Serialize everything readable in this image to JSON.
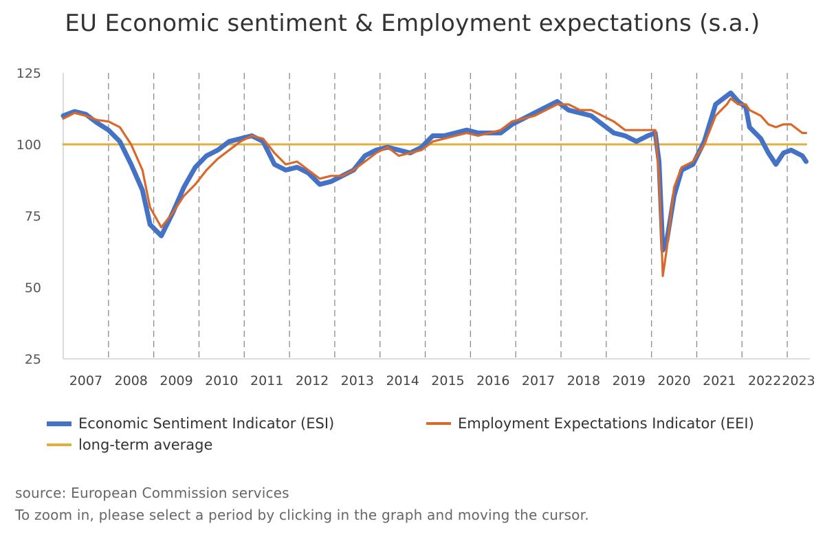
{
  "chart_data": {
    "type": "line",
    "title": "EU Economic sentiment & Employment expectations (s.a.)",
    "xlabel": "",
    "ylabel": "",
    "ylim": [
      25,
      125
    ],
    "y_ticks": [
      "25",
      "50",
      "75",
      "100",
      "125"
    ],
    "x_ticks": [
      "2007",
      "2008",
      "2009",
      "2010",
      "2011",
      "2012",
      "2013",
      "2014",
      "2015",
      "2016",
      "2017",
      "2018",
      "2019",
      "2020",
      "2021",
      "2022",
      "2023"
    ],
    "x_range": [
      "2007-01",
      "2023-06"
    ],
    "grid": "vertical dashed lines at year boundaries",
    "legend_position": "bottom",
    "series": [
      {
        "name": "Economic Sentiment Indicator (ESI)",
        "color": "#4472c4",
        "points": [
          [
            "2007-01",
            110
          ],
          [
            "2007-04",
            111.5
          ],
          [
            "2007-07",
            110.5
          ],
          [
            "2007-10",
            107.5
          ],
          [
            "2008-01",
            105
          ],
          [
            "2008-04",
            101
          ],
          [
            "2008-07",
            93
          ],
          [
            "2008-10",
            84
          ],
          [
            "2008-12",
            72
          ],
          [
            "2009-03",
            68
          ],
          [
            "2009-06",
            76
          ],
          [
            "2009-09",
            85
          ],
          [
            "2009-12",
            92
          ],
          [
            "2010-03",
            96
          ],
          [
            "2010-06",
            98
          ],
          [
            "2010-09",
            101
          ],
          [
            "2010-12",
            102
          ],
          [
            "2011-03",
            103
          ],
          [
            "2011-06",
            101
          ],
          [
            "2011-09",
            93
          ],
          [
            "2011-12",
            91
          ],
          [
            "2012-03",
            92
          ],
          [
            "2012-06",
            90
          ],
          [
            "2012-09",
            86
          ],
          [
            "2012-12",
            87
          ],
          [
            "2013-03",
            89
          ],
          [
            "2013-06",
            91
          ],
          [
            "2013-09",
            96
          ],
          [
            "2013-12",
            98
          ],
          [
            "2014-03",
            99
          ],
          [
            "2014-06",
            98
          ],
          [
            "2014-09",
            97
          ],
          [
            "2014-12",
            99
          ],
          [
            "2015-03",
            103
          ],
          [
            "2015-06",
            103
          ],
          [
            "2015-09",
            104
          ],
          [
            "2015-12",
            105
          ],
          [
            "2016-03",
            104
          ],
          [
            "2016-06",
            104
          ],
          [
            "2016-09",
            104
          ],
          [
            "2016-12",
            107
          ],
          [
            "2017-03",
            109
          ],
          [
            "2017-06",
            111
          ],
          [
            "2017-09",
            113
          ],
          [
            "2017-12",
            115
          ],
          [
            "2018-03",
            112
          ],
          [
            "2018-06",
            111
          ],
          [
            "2018-09",
            110
          ],
          [
            "2018-12",
            107
          ],
          [
            "2019-03",
            104
          ],
          [
            "2019-06",
            103
          ],
          [
            "2019-09",
            101
          ],
          [
            "2019-12",
            103
          ],
          [
            "2020-02",
            104
          ],
          [
            "2020-03",
            94
          ],
          [
            "2020-04",
            63
          ],
          [
            "2020-05",
            66
          ],
          [
            "2020-07",
            82
          ],
          [
            "2020-09",
            91
          ],
          [
            "2020-12",
            93
          ],
          [
            "2021-03",
            101
          ],
          [
            "2021-06",
            114
          ],
          [
            "2021-09",
            117
          ],
          [
            "2021-10",
            118
          ],
          [
            "2021-12",
            115
          ],
          [
            "2022-02",
            113
          ],
          [
            "2022-03",
            106
          ],
          [
            "2022-06",
            102
          ],
          [
            "2022-08",
            97
          ],
          [
            "2022-10",
            93
          ],
          [
            "2022-12",
            97
          ],
          [
            "2023-02",
            98
          ],
          [
            "2023-05",
            96
          ],
          [
            "2023-06",
            94
          ]
        ]
      },
      {
        "name": "Employment Expectations Indicator (EEI)",
        "color": "#d9692a",
        "points": [
          [
            "2007-01",
            109
          ],
          [
            "2007-04",
            111
          ],
          [
            "2007-07",
            110
          ],
          [
            "2007-10",
            108.5
          ],
          [
            "2008-01",
            108
          ],
          [
            "2008-04",
            106
          ],
          [
            "2008-07",
            100
          ],
          [
            "2008-10",
            91
          ],
          [
            "2008-12",
            78
          ],
          [
            "2009-03",
            71
          ],
          [
            "2009-06",
            76
          ],
          [
            "2009-09",
            82
          ],
          [
            "2009-12",
            86
          ],
          [
            "2010-03",
            91
          ],
          [
            "2010-06",
            95
          ],
          [
            "2010-09",
            98
          ],
          [
            "2010-12",
            101
          ],
          [
            "2011-03",
            103
          ],
          [
            "2011-06",
            102
          ],
          [
            "2011-09",
            97
          ],
          [
            "2011-12",
            93
          ],
          [
            "2012-03",
            94
          ],
          [
            "2012-06",
            91
          ],
          [
            "2012-09",
            88
          ],
          [
            "2012-12",
            89
          ],
          [
            "2013-03",
            89
          ],
          [
            "2013-06",
            91
          ],
          [
            "2013-09",
            94
          ],
          [
            "2013-12",
            97
          ],
          [
            "2014-03",
            99
          ],
          [
            "2014-06",
            96
          ],
          [
            "2014-09",
            97
          ],
          [
            "2014-12",
            98
          ],
          [
            "2015-03",
            101
          ],
          [
            "2015-06",
            102
          ],
          [
            "2015-09",
            103
          ],
          [
            "2015-12",
            104
          ],
          [
            "2016-03",
            103
          ],
          [
            "2016-06",
            104
          ],
          [
            "2016-09",
            105
          ],
          [
            "2016-12",
            108
          ],
          [
            "2017-03",
            109
          ],
          [
            "2017-06",
            110
          ],
          [
            "2017-09",
            112
          ],
          [
            "2017-12",
            114
          ],
          [
            "2018-03",
            114
          ],
          [
            "2018-06",
            112
          ],
          [
            "2018-09",
            112
          ],
          [
            "2018-12",
            110
          ],
          [
            "2019-03",
            108
          ],
          [
            "2019-06",
            105
          ],
          [
            "2019-09",
            105
          ],
          [
            "2019-12",
            105
          ],
          [
            "2020-02",
            105
          ],
          [
            "2020-03",
            89
          ],
          [
            "2020-04",
            54
          ],
          [
            "2020-05",
            63
          ],
          [
            "2020-07",
            85
          ],
          [
            "2020-09",
            92
          ],
          [
            "2020-12",
            94
          ],
          [
            "2021-03",
            100
          ],
          [
            "2021-06",
            110
          ],
          [
            "2021-09",
            114
          ],
          [
            "2021-10",
            116
          ],
          [
            "2021-12",
            114
          ],
          [
            "2022-02",
            114
          ],
          [
            "2022-03",
            112
          ],
          [
            "2022-06",
            110
          ],
          [
            "2022-08",
            107
          ],
          [
            "2022-10",
            106
          ],
          [
            "2022-12",
            107
          ],
          [
            "2023-02",
            107
          ],
          [
            "2023-05",
            104
          ],
          [
            "2023-06",
            104
          ]
        ]
      },
      {
        "name": "long-term average",
        "color": "#e2ae3e",
        "points": [
          [
            "2007-01",
            100
          ],
          [
            "2023-06",
            100
          ]
        ]
      }
    ]
  },
  "footer": {
    "source": "source: European Commission services",
    "hint": "To zoom in, please select a period by clicking in the graph and moving the cursor."
  }
}
